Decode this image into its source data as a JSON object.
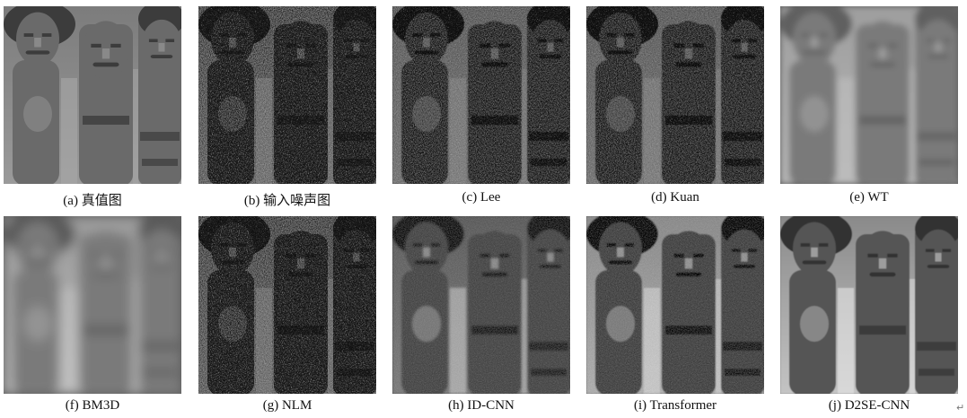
{
  "panels": [
    {
      "caption": "(a) 真值图",
      "style": "clean"
    },
    {
      "caption": "(b) 输入噪声图",
      "style": "noisy"
    },
    {
      "caption": "(c) Lee",
      "style": "semi-noisy"
    },
    {
      "caption": "(d) Kuan",
      "style": "semi-noisy"
    },
    {
      "caption": "(e) WT",
      "style": "blurry-light"
    },
    {
      "caption": "(f) BM3D",
      "style": "very-blurry"
    },
    {
      "caption": "(g) NLM",
      "style": "noisy"
    },
    {
      "caption": "(h) ID-CNN",
      "style": "smooth-dark"
    },
    {
      "caption": "(i) Transformer",
      "style": "smooth-textured"
    },
    {
      "caption": "(j) D2SE-CNN",
      "style": "clean-smooth"
    }
  ],
  "return_mark": "↵"
}
